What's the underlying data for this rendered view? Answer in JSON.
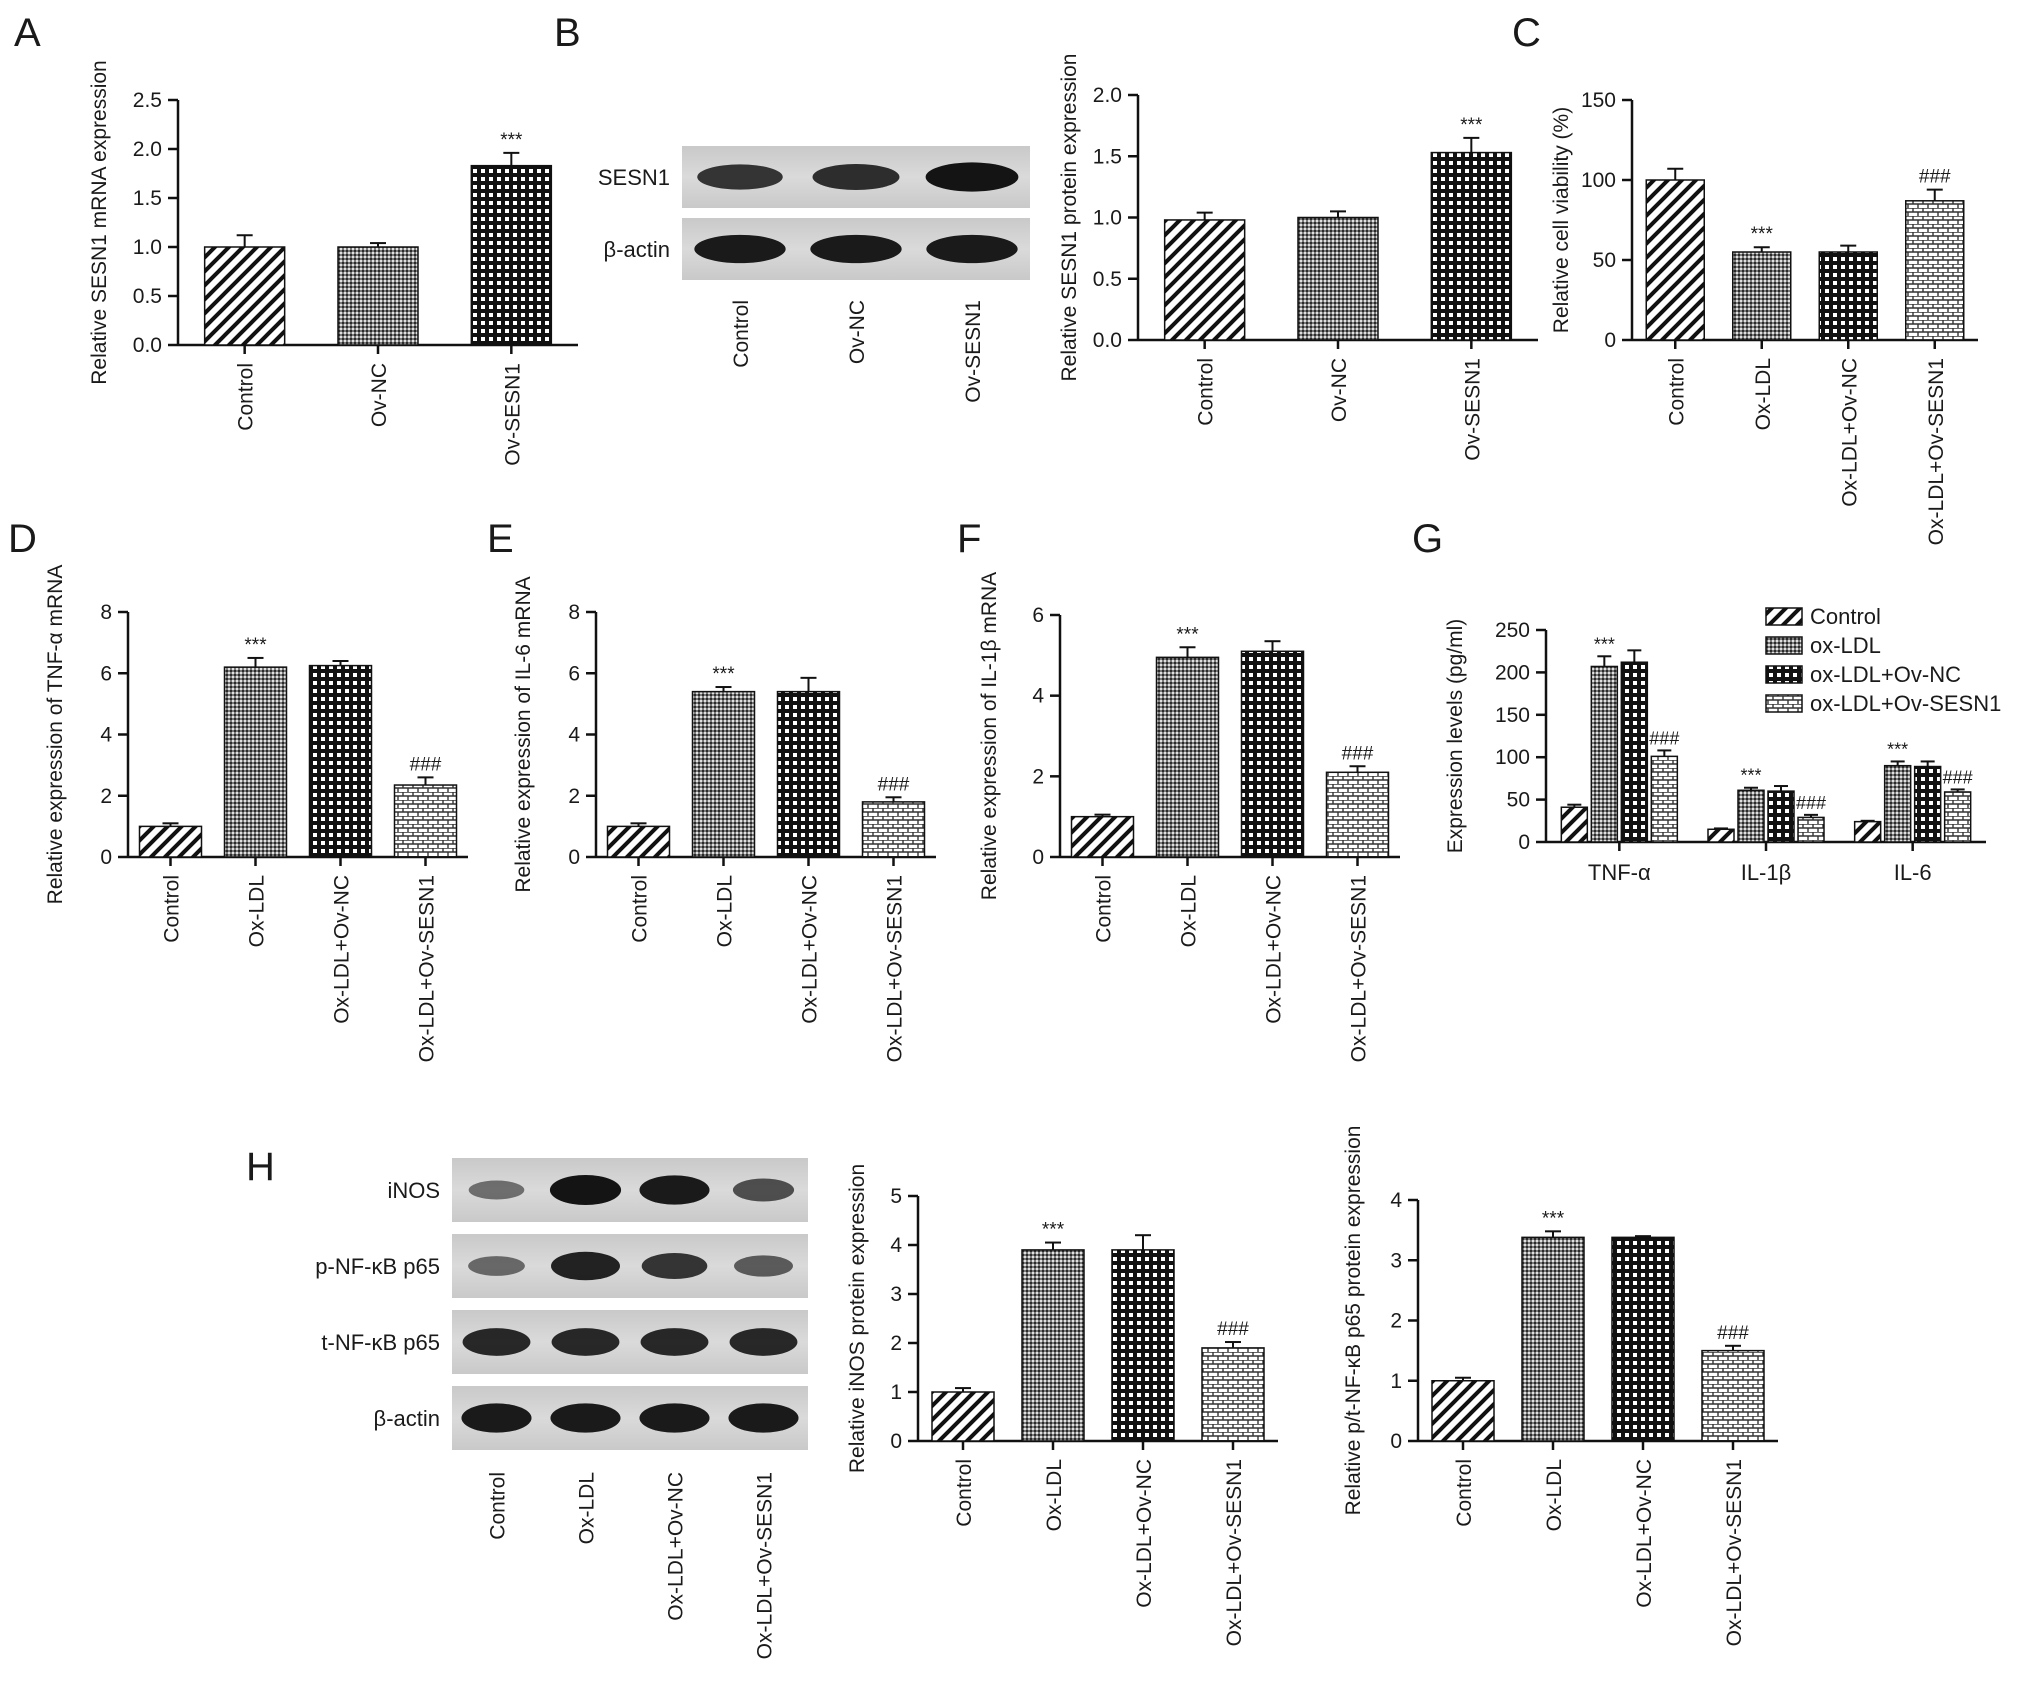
{
  "figure": {
    "colors": {
      "ink": "#1a1a1a",
      "blot_bg": "#d4d4d4",
      "band": "#141414"
    },
    "panel_letters": [
      "A",
      "B",
      "C",
      "D",
      "E",
      "F",
      "G",
      "H"
    ]
  },
  "blots": [
    {
      "panel": "B",
      "row_labels": [
        "SESN1",
        "β-actin"
      ],
      "lanes": [
        "Control",
        "Ov-NC",
        "Ov-SESN1"
      ],
      "band_intensity": [
        [
          0.75,
          0.8,
          1.0
        ],
        [
          0.95,
          0.95,
          0.95
        ]
      ]
    },
    {
      "panel": "H",
      "row_labels": [
        "iNOS",
        "p-NF-κB p65",
        "t-NF-κB p65",
        "β-actin"
      ],
      "lanes": [
        "Control",
        "Ox-LDL",
        "Ox-LDL+Ov-NC",
        "Ox-LDL+Ov-SESN1"
      ],
      "band_intensity": [
        [
          0.3,
          1.0,
          0.95,
          0.55
        ],
        [
          0.35,
          0.9,
          0.75,
          0.45
        ],
        [
          0.85,
          0.85,
          0.85,
          0.85
        ],
        [
          0.95,
          0.95,
          0.95,
          0.95
        ]
      ]
    }
  ],
  "chart_data": [
    {
      "panel": "A",
      "type": "bar",
      "ylabel": "Relative SESN1 mRNA expression",
      "categories": [
        "Control",
        "Ov-NC",
        "Ov-SESN1"
      ],
      "values": [
        1.0,
        1.0,
        1.83
      ],
      "errors": [
        0.12,
        0.04,
        0.13
      ],
      "annotations": [
        "",
        "",
        "***"
      ],
      "yticks": [
        "0.0",
        "0.5",
        "1.0",
        "1.5",
        "2.0",
        "2.5"
      ],
      "ylim": [
        0,
        2.5
      ],
      "patterns": [
        "diag",
        "dots",
        "checker"
      ]
    },
    {
      "panel": "B",
      "type": "bar",
      "ylabel": "Relative SESN1 protein expression",
      "categories": [
        "Control",
        "Ov-NC",
        "Ov-SESN1"
      ],
      "values": [
        0.98,
        1.0,
        1.53
      ],
      "errors": [
        0.06,
        0.05,
        0.12
      ],
      "annotations": [
        "",
        "",
        "***"
      ],
      "yticks": [
        "0.0",
        "0.5",
        "1.0",
        "1.5",
        "2.0"
      ],
      "ylim": [
        0,
        2.0
      ],
      "patterns": [
        "diag",
        "dots",
        "checker"
      ]
    },
    {
      "panel": "C",
      "type": "bar",
      "ylabel": "Relative cell viability (%)",
      "categories": [
        "Control",
        "Ox-LDL",
        "Ox-LDL+Ov-NC",
        "Ox-LDL+Ov-SESN1"
      ],
      "values": [
        100,
        55,
        55,
        87
      ],
      "errors": [
        7,
        3,
        4,
        7
      ],
      "annotations": [
        "",
        "***",
        "",
        "###"
      ],
      "yticks": [
        "0",
        "50",
        "100",
        "150"
      ],
      "ylim": [
        0,
        150
      ],
      "patterns": [
        "diag",
        "dots",
        "checker",
        "brick"
      ]
    },
    {
      "panel": "D",
      "type": "bar",
      "ylabel": "Relative expression of TNF-α mRNA",
      "categories": [
        "Control",
        "Ox-LDL",
        "Ox-LDL+Ov-NC",
        "Ox-LDL+Ov-SESN1"
      ],
      "values": [
        1.0,
        6.2,
        6.25,
        2.35
      ],
      "errors": [
        0.1,
        0.3,
        0.15,
        0.25
      ],
      "annotations": [
        "",
        "***",
        "",
        "###"
      ],
      "yticks": [
        "0",
        "2",
        "4",
        "6",
        "8"
      ],
      "ylim": [
        0,
        8
      ],
      "patterns": [
        "diag",
        "dots",
        "checker",
        "brick"
      ]
    },
    {
      "panel": "E",
      "type": "bar",
      "ylabel": "Relative expression of IL-6 mRNA",
      "categories": [
        "Control",
        "Ox-LDL",
        "Ox-LDL+Ov-NC",
        "Ox-LDL+Ov-SESN1"
      ],
      "values": [
        1.0,
        5.4,
        5.4,
        1.8
      ],
      "errors": [
        0.1,
        0.15,
        0.45,
        0.15
      ],
      "annotations": [
        "",
        "***",
        "",
        "###"
      ],
      "yticks": [
        "0",
        "2",
        "4",
        "6",
        "8"
      ],
      "ylim": [
        0,
        8
      ],
      "patterns": [
        "diag",
        "dots",
        "checker",
        "brick"
      ]
    },
    {
      "panel": "F",
      "type": "bar",
      "ylabel": "Relative expression of IL-1β mRNA",
      "categories": [
        "Control",
        "Ox-LDL",
        "Ox-LDL+Ov-NC",
        "Ox-LDL+Ov-SESN1"
      ],
      "values": [
        1.0,
        4.95,
        5.1,
        2.1
      ],
      "errors": [
        0.05,
        0.25,
        0.25,
        0.15
      ],
      "annotations": [
        "",
        "***",
        "",
        "###"
      ],
      "yticks": [
        "0",
        "2",
        "4",
        "6"
      ],
      "ylim": [
        0,
        6
      ],
      "patterns": [
        "diag",
        "dots",
        "checker",
        "brick"
      ]
    },
    {
      "panel": "G",
      "type": "bar",
      "ylabel": "Expression levels (pg/ml)",
      "categories": [
        "TNF-α",
        "IL-1β",
        "IL-6"
      ],
      "series": [
        {
          "name": "Control",
          "values": [
            41,
            15,
            24
          ],
          "errors": [
            3,
            1,
            1
          ],
          "annotations": [
            "",
            "",
            ""
          ]
        },
        {
          "name": "ox-LDL",
          "values": [
            207,
            61,
            90
          ],
          "errors": [
            12,
            3,
            5
          ],
          "annotations": [
            "***",
            "***",
            "***"
          ]
        },
        {
          "name": "ox-LDL+Ov-NC",
          "values": [
            212,
            60,
            89
          ],
          "errors": [
            14,
            6,
            6
          ],
          "annotations": [
            "",
            "",
            ""
          ]
        },
        {
          "name": "ox-LDL+Ov-SESN1",
          "values": [
            101,
            29,
            59
          ],
          "errors": [
            7,
            3,
            3
          ],
          "annotations": [
            "###",
            "###",
            "###"
          ]
        }
      ],
      "yticks": [
        "0",
        "50",
        "100",
        "150",
        "200",
        "250"
      ],
      "ylim": [
        0,
        250
      ],
      "legend": "top-right",
      "patterns": [
        "diag",
        "dots",
        "checker",
        "brick"
      ]
    },
    {
      "panel": "H",
      "type": "bar",
      "ylabel": "Relative iNOS protein expression",
      "categories": [
        "Control",
        "Ox-LDL",
        "Ox-LDL+Ov-NC",
        "Ox-LDL+Ov-SESN1"
      ],
      "values": [
        1.0,
        3.9,
        3.9,
        1.9
      ],
      "errors": [
        0.08,
        0.15,
        0.3,
        0.12
      ],
      "annotations": [
        "",
        "***",
        "",
        "###"
      ],
      "yticks": [
        "0",
        "1",
        "2",
        "3",
        "4",
        "5"
      ],
      "ylim": [
        0,
        5
      ],
      "patterns": [
        "diag",
        "dots",
        "checker",
        "brick"
      ]
    },
    {
      "panel": "H",
      "type": "bar",
      "ylabel": "Relative p/t-NF-κB p65 protein expression",
      "categories": [
        "Control",
        "Ox-LDL",
        "Ox-LDL+Ov-NC",
        "Ox-LDL+Ov-SESN1"
      ],
      "values": [
        1.0,
        3.38,
        3.38,
        1.5
      ],
      "errors": [
        0.05,
        0.1,
        0.02,
        0.08
      ],
      "annotations": [
        "",
        "***",
        "",
        "###"
      ],
      "yticks": [
        "0",
        "1",
        "2",
        "3",
        "4"
      ],
      "ylim": [
        0,
        4
      ],
      "patterns": [
        "diag",
        "dots",
        "checker",
        "brick"
      ]
    }
  ]
}
